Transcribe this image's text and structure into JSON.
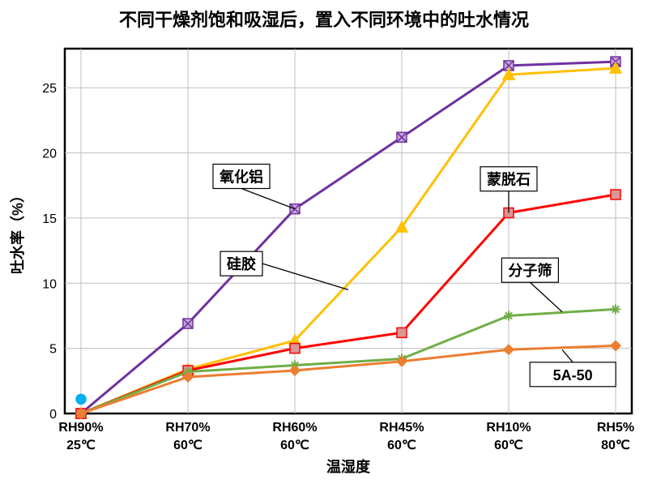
{
  "chart": {
    "type": "line",
    "title": "不同干燥剂饱和吸湿后，置入不同环境中的吐水情况",
    "title_fontsize": 22,
    "xlabel": "温湿度",
    "ylabel": "吐水率（%）",
    "label_fontsize": 18,
    "background_color": "#ffffff",
    "plot_border_color": "#000000",
    "grid_color": "#bfbfbf",
    "ylim": [
      0,
      28
    ],
    "yticks": [
      0,
      5,
      10,
      15,
      20,
      25
    ],
    "x_categories": [
      "RH90%",
      "RH70%",
      "RH60%",
      "RH45%",
      "RH10%",
      "RH5%"
    ],
    "x_sub_labels": [
      "25℃",
      "60℃",
      "60℃",
      "60℃",
      "60℃",
      "80℃"
    ],
    "extra_marker": {
      "x_index": 0,
      "y": 1.1,
      "color": "#00b0f0",
      "type": "circle",
      "size": 7
    },
    "series": [
      {
        "name": "氧化铝",
        "color": "#7030a0",
        "marker": "x-square",
        "marker_fill": "#c4a6d6",
        "values": [
          0.0,
          6.9,
          15.7,
          21.2,
          26.7,
          27.0
        ],
        "callout": {
          "x_index_between": [
            1,
            2
          ],
          "y": 18.2,
          "leader_to_x": 2,
          "leader_to_y": 15.7
        }
      },
      {
        "name": "硅胶",
        "color": "#ffc000",
        "marker": "triangle",
        "marker_fill": "#ffc000",
        "values": [
          0.0,
          3.4,
          5.6,
          14.3,
          26.0,
          26.5
        ],
        "callout": {
          "x_index_between": [
            1,
            2
          ],
          "y": 11.5,
          "leader_to_x": 2.5,
          "leader_to_y": 9.5
        }
      },
      {
        "name": "蒙脱石",
        "color": "#ff0000",
        "marker": "square",
        "marker_fill": "#d99694",
        "values": [
          0.0,
          3.3,
          5.0,
          6.2,
          15.4,
          16.8
        ],
        "callout": {
          "x_index_between": [
            3.6,
            4.4
          ],
          "y": 18.0,
          "leader_to_x": 4,
          "leader_to_y": 15.4
        }
      },
      {
        "name": "分子筛",
        "color": "#70ad47",
        "marker": "asterisk",
        "marker_fill": "#70ad47",
        "values": [
          0.0,
          3.2,
          3.7,
          4.2,
          7.5,
          8.0
        ],
        "callout": {
          "x_index_between": [
            3.8,
            4.6
          ],
          "y": 11.0,
          "leader_to_x": 4.5,
          "leader_to_y": 7.8
        }
      },
      {
        "name": "5A-50",
        "color": "#ed7d31",
        "marker": "diamond",
        "marker_fill": "#ed7d31",
        "values": [
          0.0,
          2.8,
          3.3,
          4.0,
          4.9,
          5.2
        ],
        "callout": {
          "x_index_between": [
            4.2,
            5.0
          ],
          "y": 3.0,
          "leader_to_x": 4.5,
          "leader_to_y": 4.9
        }
      }
    ]
  }
}
